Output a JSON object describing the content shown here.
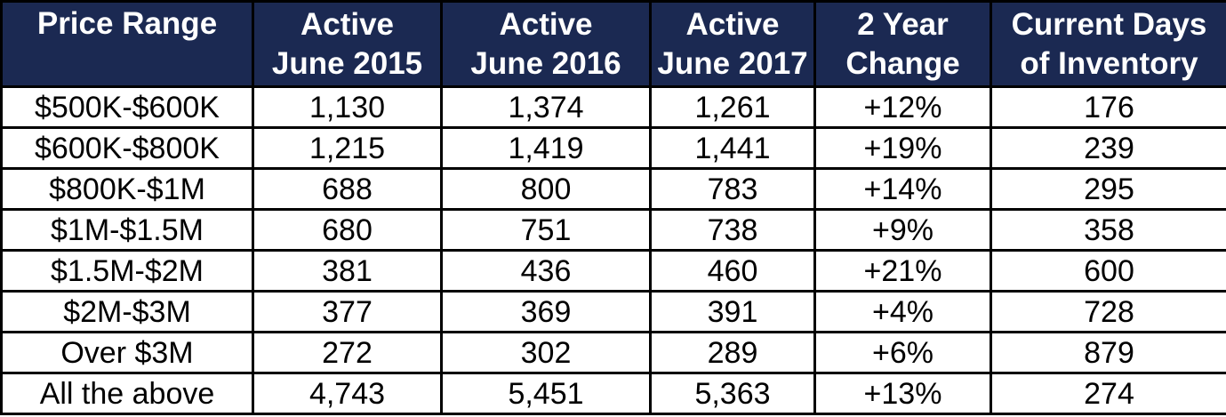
{
  "header": {
    "price_range": "Price Range",
    "active_2015": [
      "Active",
      "June 2015"
    ],
    "active_2016": [
      "Active",
      "June 2016"
    ],
    "active_2017": [
      "Active",
      "June 2017"
    ],
    "two_year_change": [
      "2 Year",
      "Change"
    ],
    "days_inventory": [
      "Current Days",
      "of Inventory"
    ]
  },
  "rows": [
    {
      "range": "$500K-$600K",
      "a2015": "1,130",
      "a2016": "1,374",
      "a2017": "1,261",
      "change": "+12%",
      "days": "176"
    },
    {
      "range": "$600K-$800K",
      "a2015": "1,215",
      "a2016": "1,419",
      "a2017": "1,441",
      "change": "+19%",
      "days": "239"
    },
    {
      "range": "$800K-$1M",
      "a2015": "688",
      "a2016": "800",
      "a2017": "783",
      "change": "+14%",
      "days": "295"
    },
    {
      "range": "$1M-$1.5M",
      "a2015": "680",
      "a2016": "751",
      "a2017": "738",
      "change": "+9%",
      "days": "358"
    },
    {
      "range": "$1.5M-$2M",
      "a2015": "381",
      "a2016": "436",
      "a2017": "460",
      "change": "+21%",
      "days": "600"
    },
    {
      "range": "$2M-$3M",
      "a2015": "377",
      "a2016": "369",
      "a2017": "391",
      "change": "+4%",
      "days": "728"
    },
    {
      "range": "Over $3M",
      "a2015": "272",
      "a2016": "302",
      "a2017": "289",
      "change": "+6%",
      "days": "879"
    },
    {
      "range": "All the above",
      "a2015": "4,743",
      "a2016": "5,451",
      "a2017": "5,363",
      "change": "+13%",
      "days": "274"
    }
  ]
}
